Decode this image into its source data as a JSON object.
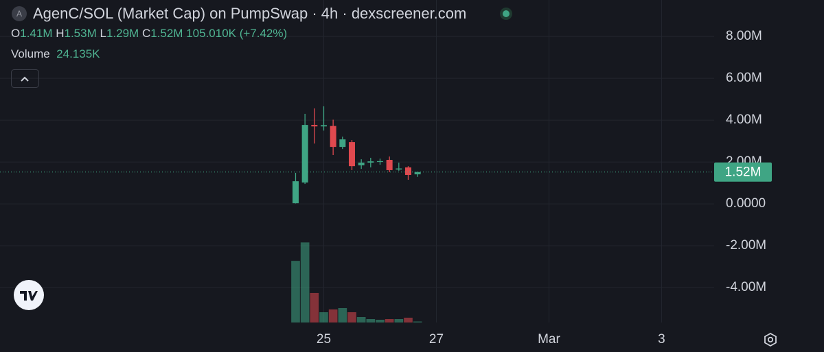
{
  "header": {
    "symbol_icon": "A",
    "title": "AgenC/SOL (Market Cap) on PumpSwap · 4h · dexscreener.com",
    "ohlc": [
      {
        "key": "O",
        "label": "1.41M"
      },
      {
        "key": "H",
        "label": "1.53M"
      },
      {
        "key": "L",
        "label": "1.29M"
      },
      {
        "key": "C",
        "label": "1.52M"
      }
    ],
    "change": "105.010K (+7.42%)",
    "volume_key": "Volume",
    "volume_label": "24.135K"
  },
  "chart_data": {
    "type": "candlestick",
    "up_color": "#3fa584",
    "down_color": "#e0494f",
    "open": [
      30000,
      1020000,
      3770000,
      3700000,
      3720000,
      2720000,
      2950000,
      1840000,
      1970000,
      2000000,
      2100000,
      1640000,
      1740000,
      1410000
    ],
    "high": [
      1480000,
      4300000,
      4560000,
      4660000,
      4020000,
      3210000,
      3050000,
      2130000,
      2200000,
      2160000,
      2260000,
      1970000,
      1800000,
      1530000
    ],
    "low": [
      20000,
      950000,
      2880000,
      3500000,
      2330000,
      2620000,
      1610000,
      1670000,
      1740000,
      1870000,
      1510000,
      1580000,
      1150000,
      1290000
    ],
    "close": [
      1080000,
      3770000,
      3700000,
      3760000,
      2720000,
      3080000,
      1800000,
      1970000,
      2030000,
      2040000,
      1610000,
      1690000,
      1380000,
      1520000
    ],
    "volume": {
      "values": [
        1440000,
        1870000,
        690000,
        240000,
        305000,
        337000,
        240000,
        128000,
        80000,
        64000,
        80000,
        80000,
        112000,
        24135
      ]
    },
    "volume_ylim": [
      0,
      2500000
    ],
    "last_price_label": "1.52M",
    "ylim": [
      -5670000,
      9740000
    ],
    "yticks": [
      {
        "value": 8000000,
        "label": "8.00M"
      },
      {
        "value": 6000000,
        "label": "6.00M"
      },
      {
        "value": 4000000,
        "label": "4.00M"
      },
      {
        "value": 2000000,
        "label": "2.00M"
      },
      {
        "value": 0,
        "label": "0.0000"
      },
      {
        "value": -2000000,
        "label": "-2.00M"
      },
      {
        "value": -4000000,
        "label": "-4.00M"
      }
    ],
    "xlim": [
      -31.5,
      44.6
    ],
    "xticks": [
      {
        "value": 3,
        "label": "25"
      },
      {
        "value": 15,
        "label": "27"
      },
      {
        "value": 27,
        "label": "Mar"
      },
      {
        "value": 39,
        "label": "3"
      }
    ],
    "grid": true
  }
}
